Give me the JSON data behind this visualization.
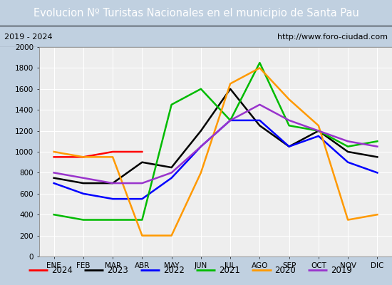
{
  "title": "Evolucion Nº Turistas Nacionales en el municipio de Santa Pau",
  "subtitle_left": "2019 - 2024",
  "subtitle_right": "http://www.foro-ciudad.com",
  "months": [
    "ENE",
    "FEB",
    "MAR",
    "ABR",
    "MAY",
    "JUN",
    "JUL",
    "AGO",
    "SEP",
    "OCT",
    "NOV",
    "DIC"
  ],
  "series": {
    "2024": [
      950,
      950,
      1000,
      1000,
      null,
      null,
      null,
      null,
      null,
      null,
      null,
      null
    ],
    "2023": [
      750,
      700,
      700,
      900,
      850,
      1200,
      1600,
      1250,
      1050,
      1200,
      1000,
      950
    ],
    "2022": [
      700,
      600,
      550,
      550,
      750,
      1050,
      1300,
      1300,
      1050,
      1150,
      900,
      800
    ],
    "2021": [
      400,
      350,
      350,
      350,
      1450,
      1600,
      1300,
      1850,
      1250,
      1200,
      1050,
      1100
    ],
    "2020": [
      1000,
      950,
      950,
      200,
      200,
      800,
      1650,
      1800,
      1500,
      1250,
      350,
      400
    ],
    "2019": [
      800,
      750,
      700,
      700,
      800,
      1050,
      1300,
      1450,
      1300,
      1200,
      1100,
      1050
    ]
  },
  "colors": {
    "2024": "#ff0000",
    "2023": "#000000",
    "2022": "#0000ff",
    "2021": "#00bb00",
    "2020": "#ff9900",
    "2019": "#9933cc"
  },
  "ylim": [
    0,
    2000
  ],
  "yticks": [
    0,
    200,
    400,
    600,
    800,
    1000,
    1200,
    1400,
    1600,
    1800,
    2000
  ],
  "title_bg_color": "#4a86c8",
  "title_text_color": "#ffffff",
  "plot_bg_color": "#eeeeee",
  "outer_bg_color": "#c0d0e0",
  "grid_color": "#ffffff",
  "title_fontsize": 10.5,
  "axis_fontsize": 7.5,
  "legend_fontsize": 8.5
}
